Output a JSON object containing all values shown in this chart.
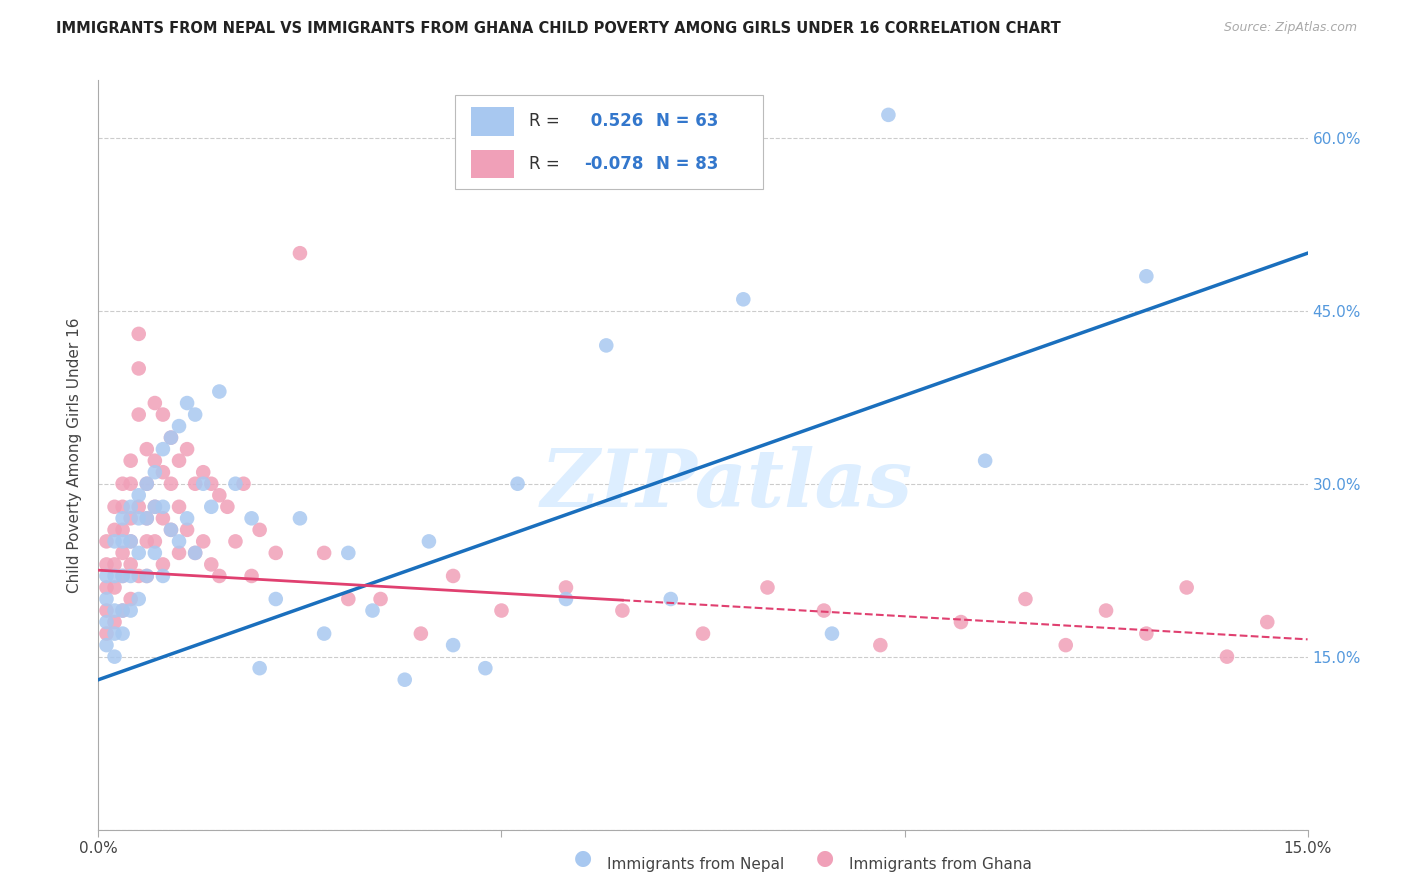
{
  "title": "IMMIGRANTS FROM NEPAL VS IMMIGRANTS FROM GHANA CHILD POVERTY AMONG GIRLS UNDER 16 CORRELATION CHART",
  "source": "Source: ZipAtlas.com",
  "ylabel": "Child Poverty Among Girls Under 16",
  "xlim": [
    0.0,
    0.15
  ],
  "ylim": [
    0.0,
    0.65
  ],
  "nepal_R": 0.526,
  "nepal_N": 63,
  "ghana_R": -0.078,
  "ghana_N": 83,
  "nepal_color": "#a8c8f0",
  "ghana_color": "#f0a0b8",
  "nepal_line_color": "#1a6fbd",
  "ghana_line_color": "#e04070",
  "watermark": "ZIPatlas",
  "nepal_x": [
    0.001,
    0.001,
    0.001,
    0.001,
    0.002,
    0.002,
    0.002,
    0.002,
    0.002,
    0.003,
    0.003,
    0.003,
    0.003,
    0.003,
    0.004,
    0.004,
    0.004,
    0.004,
    0.005,
    0.005,
    0.005,
    0.005,
    0.006,
    0.006,
    0.006,
    0.007,
    0.007,
    0.007,
    0.008,
    0.008,
    0.008,
    0.009,
    0.009,
    0.01,
    0.01,
    0.011,
    0.011,
    0.012,
    0.012,
    0.013,
    0.014,
    0.015,
    0.017,
    0.019,
    0.02,
    0.022,
    0.025,
    0.028,
    0.031,
    0.034,
    0.038,
    0.041,
    0.044,
    0.048,
    0.052,
    0.058,
    0.063,
    0.071,
    0.08,
    0.091,
    0.098,
    0.11,
    0.13
  ],
  "nepal_y": [
    0.22,
    0.2,
    0.18,
    0.16,
    0.25,
    0.22,
    0.19,
    0.17,
    0.15,
    0.27,
    0.25,
    0.22,
    0.19,
    0.17,
    0.28,
    0.25,
    0.22,
    0.19,
    0.29,
    0.27,
    0.24,
    0.2,
    0.3,
    0.27,
    0.22,
    0.31,
    0.28,
    0.24,
    0.33,
    0.28,
    0.22,
    0.34,
    0.26,
    0.35,
    0.25,
    0.37,
    0.27,
    0.36,
    0.24,
    0.3,
    0.28,
    0.38,
    0.3,
    0.27,
    0.14,
    0.2,
    0.27,
    0.17,
    0.24,
    0.19,
    0.13,
    0.25,
    0.16,
    0.14,
    0.3,
    0.2,
    0.42,
    0.2,
    0.46,
    0.17,
    0.62,
    0.32,
    0.48
  ],
  "ghana_x": [
    0.001,
    0.001,
    0.001,
    0.001,
    0.001,
    0.002,
    0.002,
    0.002,
    0.002,
    0.002,
    0.003,
    0.003,
    0.003,
    0.003,
    0.003,
    0.003,
    0.004,
    0.004,
    0.004,
    0.004,
    0.004,
    0.004,
    0.005,
    0.005,
    0.005,
    0.005,
    0.005,
    0.006,
    0.006,
    0.006,
    0.006,
    0.006,
    0.007,
    0.007,
    0.007,
    0.007,
    0.008,
    0.008,
    0.008,
    0.008,
    0.009,
    0.009,
    0.009,
    0.01,
    0.01,
    0.01,
    0.011,
    0.011,
    0.012,
    0.012,
    0.013,
    0.013,
    0.014,
    0.014,
    0.015,
    0.015,
    0.016,
    0.017,
    0.018,
    0.019,
    0.02,
    0.022,
    0.025,
    0.028,
    0.031,
    0.035,
    0.04,
    0.044,
    0.05,
    0.058,
    0.065,
    0.075,
    0.083,
    0.09,
    0.097,
    0.107,
    0.115,
    0.12,
    0.125,
    0.13,
    0.135,
    0.14,
    0.145
  ],
  "ghana_y": [
    0.25,
    0.23,
    0.21,
    0.19,
    0.17,
    0.28,
    0.26,
    0.23,
    0.21,
    0.18,
    0.3,
    0.28,
    0.26,
    0.24,
    0.22,
    0.19,
    0.32,
    0.3,
    0.27,
    0.25,
    0.23,
    0.2,
    0.43,
    0.4,
    0.36,
    0.28,
    0.22,
    0.33,
    0.3,
    0.27,
    0.25,
    0.22,
    0.37,
    0.32,
    0.28,
    0.25,
    0.36,
    0.31,
    0.27,
    0.23,
    0.34,
    0.3,
    0.26,
    0.32,
    0.28,
    0.24,
    0.33,
    0.26,
    0.3,
    0.24,
    0.31,
    0.25,
    0.3,
    0.23,
    0.29,
    0.22,
    0.28,
    0.25,
    0.3,
    0.22,
    0.26,
    0.24,
    0.5,
    0.24,
    0.2,
    0.2,
    0.17,
    0.22,
    0.19,
    0.21,
    0.19,
    0.17,
    0.21,
    0.19,
    0.16,
    0.18,
    0.2,
    0.16,
    0.19,
    0.17,
    0.21,
    0.15,
    0.18
  ],
  "ghana_solid_max": 0.065,
  "nepal_line_x0": 0.0,
  "nepal_line_y0": 0.13,
  "nepal_line_x1": 0.15,
  "nepal_line_y1": 0.5,
  "ghana_line_x0": 0.0,
  "ghana_line_y0": 0.225,
  "ghana_line_x1": 0.15,
  "ghana_line_y1": 0.165
}
